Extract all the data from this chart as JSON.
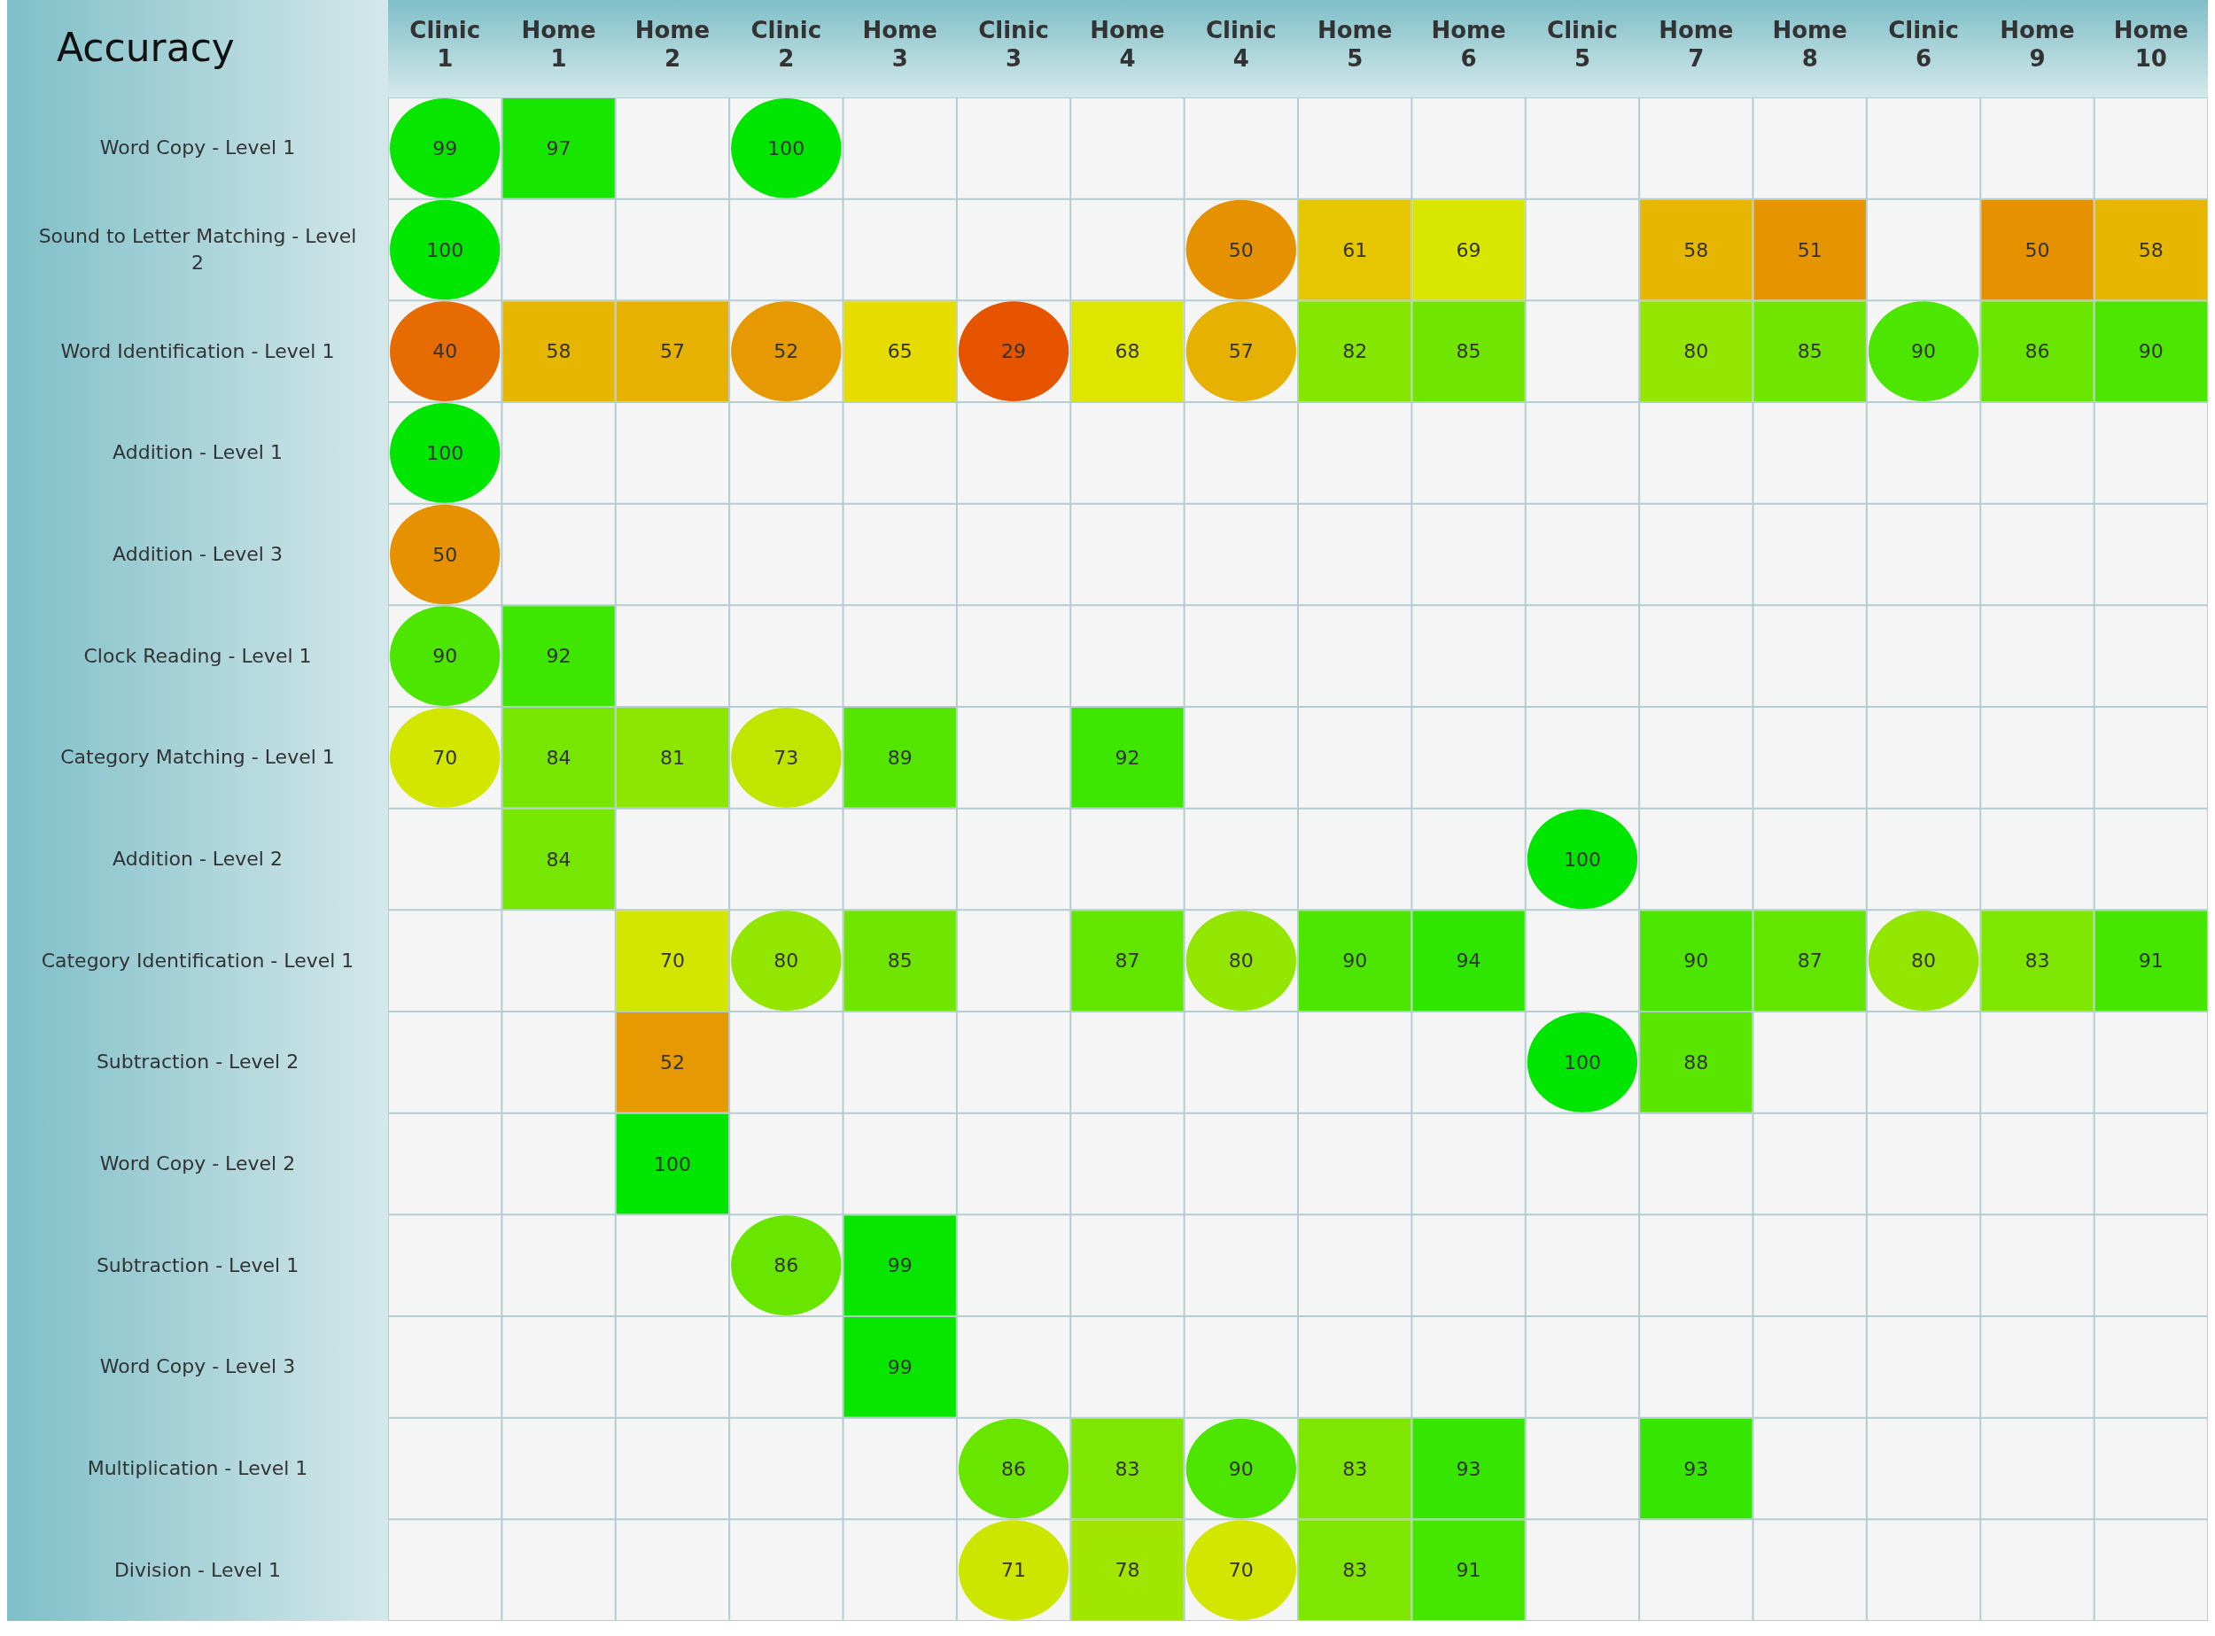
{
  "chart_data": {
    "type": "heatmap",
    "title": "Accuracy",
    "categories": [
      "Clinic 1",
      "Home 1",
      "Home 2",
      "Clinic 2",
      "Home 3",
      "Clinic 3",
      "Home 4",
      "Clinic 4",
      "Home 5",
      "Home 6",
      "Clinic 5",
      "Home 7",
      "Home 8",
      "Clinic 6",
      "Home 9",
      "Home 10"
    ],
    "marker": [
      "circle",
      "square",
      "square",
      "circle",
      "square",
      "circle",
      "square",
      "circle",
      "square",
      "square",
      "circle",
      "square",
      "square",
      "circle",
      "square",
      "square"
    ],
    "y_categories": [
      "Word Copy - Level 1",
      "Sound to Letter Matching - Level 2",
      "Word Identification - Level 1",
      "Addition - Level 1",
      "Addition - Level 3",
      "Clock Reading - Level 1",
      "Category Matching - Level 1",
      "Addition - Level 2",
      "Category Identification - Level 1",
      "Subtraction - Level 2",
      "Word Copy - Level 2",
      "Subtraction - Level 1",
      "Word Copy - Level 3",
      "Multiplication - Level 1",
      "Division - Level 1"
    ],
    "cells": [
      [
        99,
        97,
        null,
        100,
        null,
        null,
        null,
        null,
        null,
        null,
        null,
        null,
        null,
        null,
        null,
        null
      ],
      [
        100,
        null,
        null,
        null,
        null,
        null,
        null,
        50,
        61,
        69,
        null,
        58,
        51,
        null,
        50,
        58
      ],
      [
        40,
        58,
        57,
        52,
        65,
        29,
        68,
        57,
        82,
        85,
        null,
        80,
        85,
        90,
        86,
        90
      ],
      [
        100,
        null,
        null,
        null,
        null,
        null,
        null,
        null,
        null,
        null,
        null,
        null,
        null,
        null,
        null,
        null
      ],
      [
        50,
        null,
        null,
        null,
        null,
        null,
        null,
        null,
        null,
        null,
        null,
        null,
        null,
        null,
        null,
        null
      ],
      [
        90,
        92,
        null,
        null,
        null,
        null,
        null,
        null,
        null,
        null,
        null,
        null,
        null,
        null,
        null,
        null
      ],
      [
        70,
        84,
        81,
        73,
        89,
        null,
        92,
        null,
        null,
        null,
        null,
        null,
        null,
        null,
        null,
        null
      ],
      [
        null,
        84,
        null,
        null,
        null,
        null,
        null,
        null,
        null,
        null,
        100,
        null,
        null,
        null,
        null,
        null
      ],
      [
        null,
        null,
        70,
        80,
        85,
        null,
        87,
        80,
        90,
        94,
        null,
        90,
        87,
        80,
        83,
        91
      ],
      [
        null,
        null,
        52,
        null,
        null,
        null,
        null,
        null,
        null,
        null,
        100,
        88,
        null,
        null,
        null,
        null
      ],
      [
        null,
        null,
        100,
        null,
        null,
        null,
        null,
        null,
        null,
        null,
        null,
        null,
        null,
        null,
        null,
        null
      ],
      [
        null,
        null,
        null,
        86,
        99,
        null,
        null,
        null,
        null,
        null,
        null,
        null,
        null,
        null,
        null,
        null
      ],
      [
        null,
        null,
        null,
        null,
        99,
        null,
        null,
        null,
        null,
        null,
        null,
        null,
        null,
        null,
        null,
        null
      ],
      [
        null,
        null,
        null,
        null,
        null,
        86,
        83,
        90,
        83,
        93,
        null,
        93,
        null,
        null,
        null,
        null
      ],
      [
        null,
        null,
        null,
        null,
        null,
        71,
        78,
        70,
        83,
        91,
        null,
        null,
        null,
        null,
        null,
        null
      ]
    ],
    "data_labels": true,
    "grid": true
  }
}
